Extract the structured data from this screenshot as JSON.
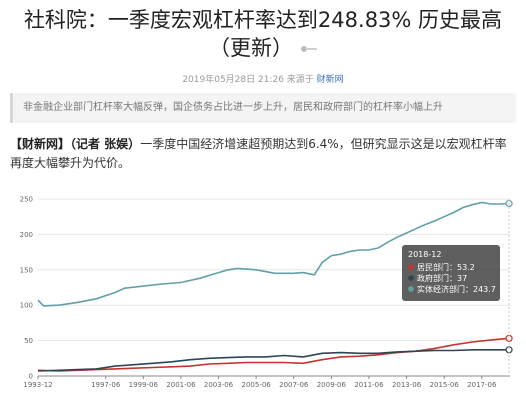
{
  "article": {
    "title_line1": "社科院：一季度宏观杠杆率达到248.83% 历史最高",
    "title_line2": "（更新）",
    "date": "2019年05月28日 21:26 来源于",
    "source": "财新网",
    "summary": "非金融企业部门杠杆率大幅反弹，国企债务占比进一步上升，居民和政府部门的杠杆率小幅上升",
    "lead_bold": "【财新网】（记者 张娱）",
    "lead_text": "一季度中国经济增速超预期达到6.4%，但研究显示这是以宏观杠杆率再度大幅攀升为代价。"
  },
  "chart_data": {
    "type": "line",
    "ylim": [
      0,
      250
    ],
    "yticks": [
      "0",
      "50",
      "100",
      "150",
      "200",
      "250"
    ],
    "xticks": [
      "1993-12",
      "1997-06",
      "1999-06",
      "2001-06",
      "2003-06",
      "2005-06",
      "2007-06",
      "2009-06",
      "2011-06",
      "2013-06",
      "2015-06",
      "2017-06"
    ],
    "colors": {
      "居民部门": "#c23531",
      "政府部门": "#2f4554",
      "实体经济部门": "#61a0a8"
    },
    "series": [
      {
        "name": "实体经济部门",
        "points": [
          [
            1993.9,
            107
          ],
          [
            1994.2,
            99
          ],
          [
            1995.0,
            100
          ],
          [
            1996.0,
            104
          ],
          [
            1997.0,
            109
          ],
          [
            1998.0,
            118
          ],
          [
            1998.5,
            124
          ],
          [
            1999.5,
            127
          ],
          [
            2000.5,
            130
          ],
          [
            2001.5,
            132
          ],
          [
            2002.5,
            138
          ],
          [
            2003.5,
            146
          ],
          [
            2004.0,
            150
          ],
          [
            2004.5,
            152
          ],
          [
            2005.5,
            150
          ],
          [
            2006.5,
            145
          ],
          [
            2007.5,
            145
          ],
          [
            2008.0,
            146
          ],
          [
            2008.6,
            143
          ],
          [
            2009.0,
            160
          ],
          [
            2009.5,
            170
          ],
          [
            2010.0,
            172
          ],
          [
            2010.5,
            176
          ],
          [
            2011.0,
            178
          ],
          [
            2011.5,
            178
          ],
          [
            2012.0,
            181
          ],
          [
            2012.5,
            189
          ],
          [
            2013.0,
            196
          ],
          [
            2013.5,
            202
          ],
          [
            2014.0,
            208
          ],
          [
            2014.5,
            214
          ],
          [
            2015.0,
            219
          ],
          [
            2015.5,
            225
          ],
          [
            2016.0,
            231
          ],
          [
            2016.5,
            238
          ],
          [
            2017.0,
            242
          ],
          [
            2017.5,
            245
          ],
          [
            2018.0,
            243
          ],
          [
            2018.5,
            243
          ],
          [
            2018.95,
            243.7
          ]
        ]
      },
      {
        "name": "居民部门",
        "points": [
          [
            1993.9,
            8
          ],
          [
            1995.0,
            7
          ],
          [
            1996.0,
            8
          ],
          [
            1997.0,
            9
          ],
          [
            1998.0,
            10
          ],
          [
            1999.0,
            11
          ],
          [
            2000.0,
            12
          ],
          [
            2001.0,
            13
          ],
          [
            2002.0,
            14
          ],
          [
            2003.0,
            17
          ],
          [
            2004.0,
            18
          ],
          [
            2005.0,
            19
          ],
          [
            2006.0,
            19
          ],
          [
            2007.0,
            19
          ],
          [
            2008.0,
            18
          ],
          [
            2009.0,
            23
          ],
          [
            2010.0,
            27
          ],
          [
            2011.0,
            28
          ],
          [
            2012.0,
            30
          ],
          [
            2013.0,
            33
          ],
          [
            2014.0,
            35
          ],
          [
            2015.0,
            39
          ],
          [
            2016.0,
            44
          ],
          [
            2017.0,
            48
          ],
          [
            2018.0,
            51
          ],
          [
            2018.95,
            53.2
          ]
        ]
      },
      {
        "name": "政府部门",
        "points": [
          [
            1993.9,
            7
          ],
          [
            1995.0,
            8
          ],
          [
            1996.0,
            9
          ],
          [
            1997.0,
            10
          ],
          [
            1998.0,
            14
          ],
          [
            1999.0,
            16
          ],
          [
            2000.0,
            18
          ],
          [
            2001.0,
            20
          ],
          [
            2002.0,
            23
          ],
          [
            2003.0,
            25
          ],
          [
            2004.0,
            26
          ],
          [
            2005.0,
            27
          ],
          [
            2006.0,
            27
          ],
          [
            2007.0,
            29
          ],
          [
            2008.0,
            27
          ],
          [
            2009.0,
            32
          ],
          [
            2010.0,
            33
          ],
          [
            2011.0,
            32
          ],
          [
            2012.0,
            32
          ],
          [
            2013.0,
            34
          ],
          [
            2014.0,
            35
          ],
          [
            2015.0,
            36
          ],
          [
            2016.0,
            36
          ],
          [
            2017.0,
            37
          ],
          [
            2018.0,
            37
          ],
          [
            2018.95,
            37
          ]
        ]
      }
    ],
    "tooltip": {
      "date": "2018-12",
      "rows": [
        {
          "label": "居民部门：53.2",
          "color": "#c23531"
        },
        {
          "label": "政府部门：37",
          "color": "#2f4554"
        },
        {
          "label": "实体经济部门：243.7",
          "color": "#61a0a8"
        }
      ]
    }
  }
}
